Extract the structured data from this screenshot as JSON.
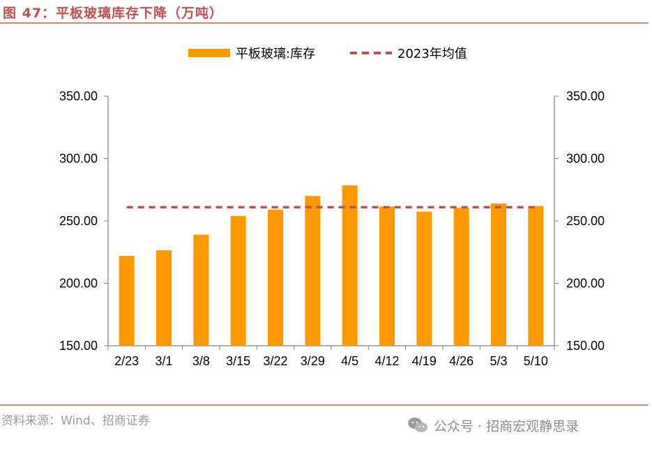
{
  "header": {
    "title": "图 47：平板玻璃库存下降（万吨）"
  },
  "footer": {
    "source": "资料来源：Wind、招商证券",
    "watermark": "公众号 · 招商宏观静思录",
    "watermark_icon": "wechat-icon"
  },
  "colors": {
    "bar": "#FF9900",
    "avg_line": "#C0504D",
    "accent": "#C0504D",
    "rule": "#C98B6B"
  },
  "chart_data": {
    "type": "bar",
    "title": "",
    "xlabel": "",
    "ylabel": "",
    "categories": [
      "2/23",
      "3/1",
      "3/8",
      "3/15",
      "3/22",
      "3/29",
      "4/5",
      "4/12",
      "4/19",
      "4/26",
      "5/3",
      "5/10"
    ],
    "series": [
      {
        "name": "平板玻璃:库存",
        "type": "bar",
        "values": [
          222,
          226.5,
          239,
          254,
          259,
          270,
          278.5,
          261.5,
          257.5,
          260.5,
          264,
          262
        ]
      },
      {
        "name": "2023年均值",
        "type": "line",
        "style": "dashed",
        "values": [
          261,
          261,
          261,
          261,
          261,
          261,
          261,
          261,
          261,
          261,
          261,
          261
        ]
      }
    ],
    "ylim": [
      150,
      350
    ],
    "yticks": [
      "150.00",
      "200.00",
      "250.00",
      "300.00",
      "350.00"
    ],
    "secondary_yticks": [
      "150.00",
      "200.00",
      "250.00",
      "300.00",
      "350.00"
    ],
    "grid": false,
    "legend_position": "top-center"
  }
}
